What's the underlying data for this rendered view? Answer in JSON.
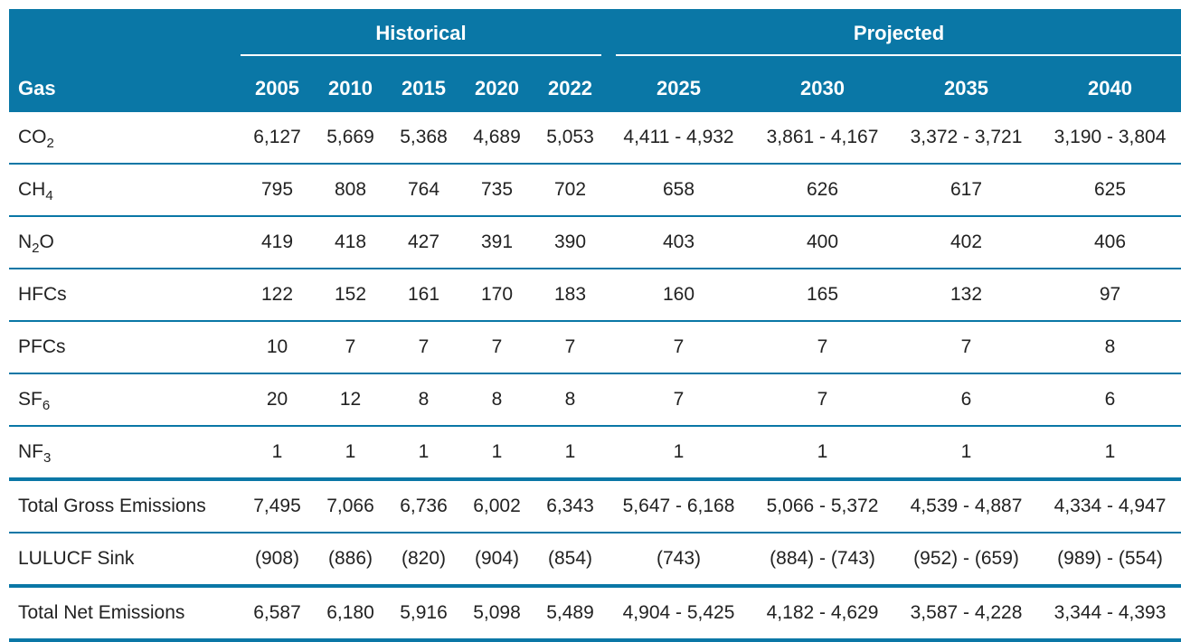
{
  "header": {
    "historical_label": "Historical",
    "projected_label": "Projected",
    "gas_label": "Gas",
    "years": [
      "2005",
      "2010",
      "2015",
      "2020",
      "2022",
      "2025",
      "2030",
      "2035",
      "2040"
    ]
  },
  "rows": [
    {
      "name": "CO",
      "sub": "2",
      "values": [
        "6,127",
        "5,669",
        "5,368",
        "4,689",
        "5,053",
        "4,411 - 4,932",
        "3,861 - 4,167",
        "3,372 - 3,721",
        "3,190 - 3,804"
      ]
    },
    {
      "name": "CH",
      "sub": "4",
      "values": [
        "795",
        "808",
        "764",
        "735",
        "702",
        "658",
        "626",
        "617",
        "625"
      ]
    },
    {
      "name": "N",
      "sub": "2",
      "name2": "O",
      "values": [
        "419",
        "418",
        "427",
        "391",
        "390",
        "403",
        "400",
        "402",
        "406"
      ]
    },
    {
      "name": "HFCs",
      "values": [
        "122",
        "152",
        "161",
        "170",
        "183",
        "160",
        "165",
        "132",
        "97"
      ]
    },
    {
      "name": "PFCs",
      "values": [
        "10",
        "7",
        "7",
        "7",
        "7",
        "7",
        "7",
        "7",
        "8"
      ]
    },
    {
      "name": "SF",
      "sub": "6",
      "values": [
        "20",
        "12",
        "8",
        "8",
        "8",
        "7",
        "7",
        "6",
        "6"
      ]
    },
    {
      "name": "NF",
      "sub": "3",
      "values": [
        "1",
        "1",
        "1",
        "1",
        "1",
        "1",
        "1",
        "1",
        "1"
      ]
    },
    {
      "name": "Total Gross Emissions",
      "values": [
        "7,495",
        "7,066",
        "6,736",
        "6,002",
        "6,343",
        "5,647 - 6,168",
        "5,066 - 5,372",
        "4,539 - 4,887",
        "4,334 - 4,947"
      ]
    },
    {
      "name": "LULUCF Sink",
      "values": [
        "(908)",
        "(886)",
        "(820)",
        "(904)",
        "(854)",
        "(743)",
        "(884) - (743)",
        "(952) - (659)",
        "(989) - (554)"
      ]
    },
    {
      "name": "Total Net Emissions",
      "values": [
        "6,587",
        "6,180",
        "5,916",
        "5,098",
        "5,489",
        "4,904 - 5,425",
        "4,182 - 4,629",
        "3,587 - 4,228",
        "3,344 - 4,393"
      ]
    }
  ],
  "colors": {
    "header_bg": "#0a77a6",
    "header_text": "#ffffff",
    "rule": "#0a77a6"
  }
}
